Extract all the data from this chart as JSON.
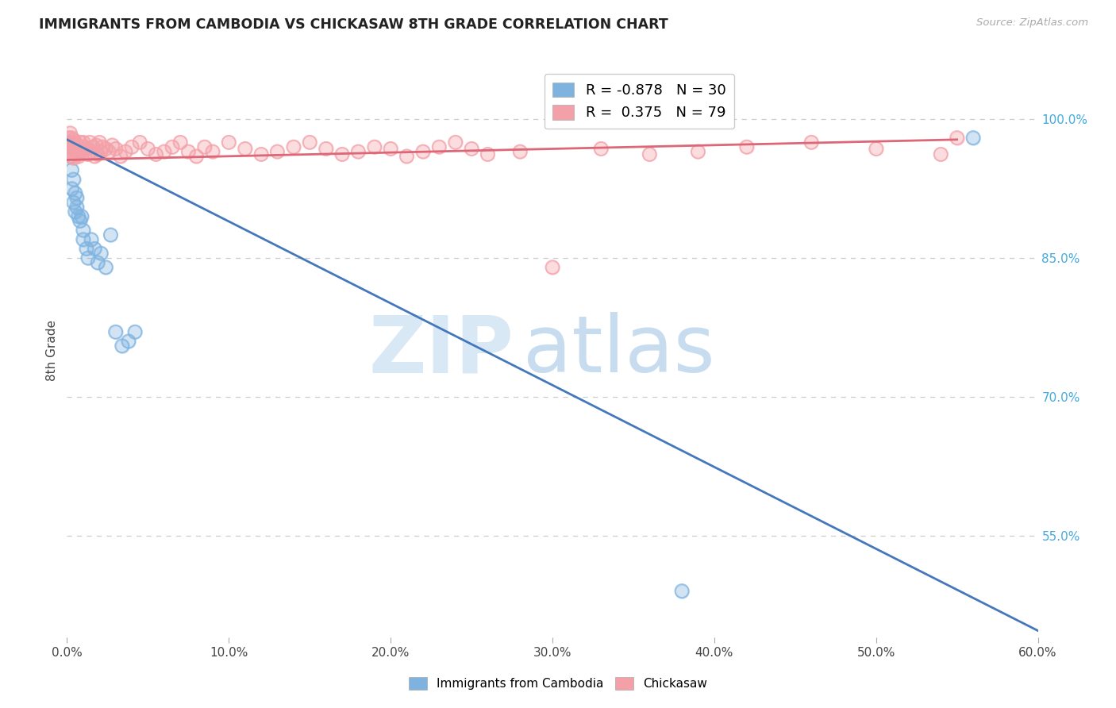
{
  "title": "IMMIGRANTS FROM CAMBODIA VS CHICKASAW 8TH GRADE CORRELATION CHART",
  "source": "Source: ZipAtlas.com",
  "xlabel_blue": "Immigrants from Cambodia",
  "xlabel_pink": "Chickasaw",
  "ylabel": "8th Grade",
  "xlim": [
    0.0,
    0.6
  ],
  "ylim": [
    0.44,
    1.06
  ],
  "blue_R": -0.878,
  "blue_N": 30,
  "pink_R": 0.375,
  "pink_N": 79,
  "blue_color": "#7EB3E0",
  "pink_color": "#F4A0A8",
  "blue_line_color": "#4477BB",
  "pink_line_color": "#DD6677",
  "background_color": "#ffffff",
  "grid_color": "#cccccc",
  "y_tick_vals": [
    1.0,
    0.85,
    0.7,
    0.55
  ],
  "y_tick_labels": [
    "100.0%",
    "85.0%",
    "70.0%",
    "55.0%"
  ],
  "x_tick_vals": [
    0.0,
    0.1,
    0.2,
    0.3,
    0.4,
    0.5,
    0.6
  ],
  "x_tick_labels": [
    "0.0%",
    "10.0%",
    "20.0%",
    "30.0%",
    "40.0%",
    "50.0%",
    "60.0%"
  ],
  "blue_scatter_x": [
    0.001,
    0.002,
    0.002,
    0.003,
    0.003,
    0.004,
    0.004,
    0.005,
    0.005,
    0.006,
    0.006,
    0.007,
    0.008,
    0.009,
    0.01,
    0.01,
    0.012,
    0.013,
    0.015,
    0.017,
    0.019,
    0.021,
    0.024,
    0.027,
    0.03,
    0.034,
    0.038,
    0.042,
    0.38,
    0.56
  ],
  "blue_scatter_y": [
    0.975,
    0.97,
    0.96,
    0.945,
    0.925,
    0.935,
    0.91,
    0.92,
    0.9,
    0.915,
    0.905,
    0.895,
    0.89,
    0.895,
    0.88,
    0.87,
    0.86,
    0.85,
    0.87,
    0.86,
    0.845,
    0.855,
    0.84,
    0.875,
    0.77,
    0.755,
    0.76,
    0.77,
    0.49,
    0.98
  ],
  "pink_scatter_x": [
    0.001,
    0.001,
    0.001,
    0.002,
    0.002,
    0.002,
    0.003,
    0.003,
    0.003,
    0.004,
    0.004,
    0.004,
    0.005,
    0.005,
    0.006,
    0.006,
    0.007,
    0.007,
    0.008,
    0.008,
    0.009,
    0.01,
    0.01,
    0.011,
    0.012,
    0.013,
    0.014,
    0.015,
    0.016,
    0.017,
    0.018,
    0.019,
    0.02,
    0.021,
    0.022,
    0.024,
    0.026,
    0.028,
    0.03,
    0.033,
    0.036,
    0.04,
    0.045,
    0.05,
    0.055,
    0.06,
    0.065,
    0.07,
    0.075,
    0.08,
    0.085,
    0.09,
    0.1,
    0.11,
    0.12,
    0.13,
    0.14,
    0.15,
    0.16,
    0.17,
    0.18,
    0.19,
    0.2,
    0.21,
    0.22,
    0.23,
    0.24,
    0.25,
    0.26,
    0.28,
    0.3,
    0.33,
    0.36,
    0.39,
    0.42,
    0.46,
    0.5,
    0.54,
    0.55
  ],
  "pink_scatter_y": [
    0.98,
    0.975,
    0.965,
    0.985,
    0.975,
    0.965,
    0.98,
    0.975,
    0.96,
    0.978,
    0.968,
    0.958,
    0.975,
    0.965,
    0.972,
    0.962,
    0.97,
    0.96,
    0.975,
    0.965,
    0.968,
    0.975,
    0.965,
    0.97,
    0.968,
    0.962,
    0.975,
    0.965,
    0.97,
    0.96,
    0.972,
    0.962,
    0.975,
    0.965,
    0.97,
    0.968,
    0.965,
    0.972,
    0.968,
    0.96,
    0.965,
    0.97,
    0.975,
    0.968,
    0.962,
    0.965,
    0.97,
    0.975,
    0.965,
    0.96,
    0.97,
    0.965,
    0.975,
    0.968,
    0.962,
    0.965,
    0.97,
    0.975,
    0.968,
    0.962,
    0.965,
    0.97,
    0.968,
    0.96,
    0.965,
    0.97,
    0.975,
    0.968,
    0.962,
    0.965,
    0.84,
    0.968,
    0.962,
    0.965,
    0.97,
    0.975,
    0.968,
    0.962,
    0.98
  ],
  "blue_line_x0": 0.0,
  "blue_line_x1": 0.608,
  "blue_line_y0": 0.978,
  "blue_line_y1": 0.44,
  "pink_line_x0": 0.0,
  "pink_line_x1": 0.55,
  "pink_line_y0": 0.956,
  "pink_line_y1": 0.978
}
